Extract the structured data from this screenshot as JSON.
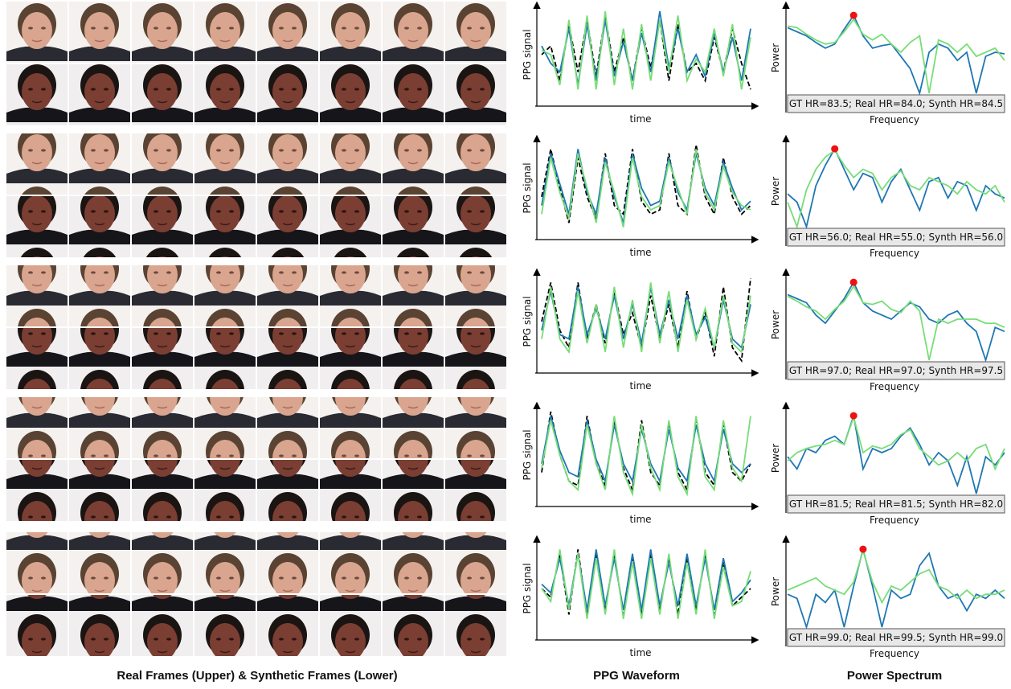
{
  "axes": {
    "ppg_y": "PPG signal",
    "ppg_x": "time",
    "spec_y": "Power",
    "spec_x": "Frequency"
  },
  "captions": [
    "Real Frames (Upper) & Synthetic Frames (Lower)",
    "PPG Waveform",
    "Power Spectrum"
  ],
  "colors": {
    "gt": "#000000",
    "real": "#1f77b4",
    "synth": "#77dd77",
    "peak": "#ee1111"
  },
  "rows": [
    {
      "ppg": {
        "gt": [
          0.5,
          0.6,
          0.2,
          0.85,
          0.3,
          0.9,
          0.25,
          0.95,
          0.3,
          0.7,
          0.2,
          0.8,
          0.35,
          0.9,
          0.2,
          0.85,
          0.3,
          0.4,
          0.2,
          0.7,
          0.3,
          0.8,
          0.4,
          0.1
        ],
        "real": [
          0.6,
          0.4,
          0.3,
          0.8,
          0.15,
          0.85,
          0.2,
          0.9,
          0.25,
          0.65,
          0.2,
          0.75,
          0.3,
          1.0,
          0.35,
          0.8,
          0.3,
          0.5,
          0.25,
          0.75,
          0.3,
          0.7,
          0.2,
          0.8
        ],
        "synth": [
          0.55,
          0.5,
          0.15,
          0.9,
          0.1,
          0.95,
          0.1,
          1.0,
          0.15,
          0.8,
          0.1,
          0.85,
          0.2,
          0.9,
          0.3,
          0.95,
          0.2,
          0.45,
          0.3,
          0.8,
          0.25,
          0.85,
          0.1,
          0.7
        ]
      },
      "spectrum": {
        "label": "GT HR=83.5; Real HR=84.0; Synth HR=84.5",
        "real": [
          0.8,
          0.75,
          0.7,
          0.62,
          0.55,
          0.6,
          0.78,
          0.95,
          0.7,
          0.55,
          0.58,
          0.6,
          0.45,
          0.3,
          0.0,
          0.5,
          0.6,
          0.55,
          0.4,
          0.5,
          0.0,
          0.45,
          0.5,
          0.48
        ],
        "synth": [
          0.82,
          0.8,
          0.72,
          0.65,
          0.6,
          0.62,
          0.75,
          0.9,
          0.72,
          0.65,
          0.72,
          0.6,
          0.5,
          0.62,
          0.7,
          0.0,
          0.65,
          0.6,
          0.5,
          0.6,
          0.45,
          0.5,
          0.55,
          0.4
        ]
      }
    },
    {
      "ppg": {
        "gt": [
          0.4,
          0.95,
          0.5,
          0.1,
          0.85,
          0.4,
          0.15,
          0.9,
          0.3,
          0.2,
          0.95,
          0.35,
          0.2,
          0.25,
          0.9,
          0.3,
          0.2,
          1.0,
          0.4,
          0.2,
          0.85,
          0.4,
          0.2,
          0.3
        ],
        "real": [
          0.3,
          0.9,
          0.55,
          0.2,
          0.95,
          0.45,
          0.2,
          0.85,
          0.4,
          0.1,
          0.9,
          0.5,
          0.3,
          0.35,
          0.85,
          0.45,
          0.25,
          0.9,
          0.5,
          0.3,
          0.8,
          0.5,
          0.25,
          0.35
        ],
        "synth": [
          0.2,
          0.85,
          0.45,
          0.15,
          0.9,
          0.5,
          0.1,
          0.8,
          0.45,
          0.05,
          0.85,
          0.4,
          0.25,
          0.3,
          0.8,
          0.5,
          0.2,
          0.95,
          0.45,
          0.25,
          0.75,
          0.45,
          0.3,
          0.25
        ]
      },
      "spectrum": {
        "label": "GT HR=56.0; Real HR=55.0; Synth HR=56.0",
        "real": [
          0.4,
          0.3,
          0.0,
          0.5,
          0.75,
          0.95,
          0.7,
          0.45,
          0.65,
          0.6,
          0.3,
          0.55,
          0.7,
          0.45,
          0.2,
          0.55,
          0.6,
          0.35,
          0.55,
          0.5,
          0.2,
          0.5,
          0.4,
          0.35
        ],
        "synth": [
          0.3,
          0.0,
          0.45,
          0.7,
          0.85,
          0.93,
          0.75,
          0.6,
          0.7,
          0.65,
          0.45,
          0.6,
          0.68,
          0.5,
          0.45,
          0.6,
          0.55,
          0.5,
          0.4,
          0.55,
          0.45,
          0.4,
          0.5,
          0.3
        ]
      }
    },
    {
      "ppg": {
        "gt": [
          0.5,
          0.95,
          0.4,
          0.2,
          0.95,
          0.3,
          0.7,
          0.25,
          0.85,
          0.35,
          0.6,
          0.2,
          0.8,
          0.3,
          0.7,
          0.2,
          0.85,
          0.3,
          0.6,
          0.1,
          0.9,
          0.2,
          0.05,
          1.0
        ],
        "real": [
          0.4,
          0.85,
          0.35,
          0.3,
          0.9,
          0.35,
          0.65,
          0.3,
          0.8,
          0.3,
          0.7,
          0.25,
          0.9,
          0.35,
          0.75,
          0.3,
          0.8,
          0.35,
          0.55,
          0.2,
          0.75,
          0.3,
          0.2,
          0.7
        ],
        "synth": [
          0.3,
          0.9,
          0.3,
          0.15,
          0.85,
          0.25,
          0.7,
          0.15,
          0.9,
          0.2,
          0.75,
          0.15,
          0.95,
          0.25,
          0.85,
          0.15,
          0.75,
          0.3,
          0.65,
          0.2,
          0.8,
          0.25,
          0.15,
          0.8
        ]
      },
      "spectrum": {
        "label": "GT HR=97.0; Real HR=97.0; Synth HR=97.5",
        "real": [
          0.8,
          0.75,
          0.7,
          0.55,
          0.45,
          0.6,
          0.75,
          0.95,
          0.7,
          0.6,
          0.55,
          0.5,
          0.6,
          0.7,
          0.65,
          0.5,
          0.45,
          0.55,
          0.6,
          0.45,
          0.35,
          0.0,
          0.4,
          0.35
        ],
        "synth": [
          0.78,
          0.72,
          0.65,
          0.6,
          0.5,
          0.62,
          0.72,
          0.9,
          0.7,
          0.68,
          0.72,
          0.62,
          0.58,
          0.72,
          0.6,
          0.0,
          0.5,
          0.45,
          0.5,
          0.5,
          0.5,
          0.45,
          0.45,
          0.4
        ]
      }
    },
    {
      "ppg": {
        "gt": [
          0.3,
          1.0,
          0.5,
          0.2,
          0.15,
          0.95,
          0.4,
          0.15,
          0.9,
          0.35,
          0.1,
          0.9,
          0.3,
          0.15,
          0.85,
          0.3,
          0.1,
          0.9,
          0.3,
          0.15,
          0.85,
          0.3,
          0.2,
          0.4
        ],
        "real": [
          0.4,
          0.95,
          0.55,
          0.3,
          0.25,
          0.9,
          0.45,
          0.2,
          0.85,
          0.4,
          0.2,
          0.8,
          0.4,
          0.2,
          0.8,
          0.35,
          0.2,
          0.85,
          0.4,
          0.2,
          0.8,
          0.4,
          0.3,
          0.4
        ],
        "synth": [
          0.35,
          0.9,
          0.5,
          0.2,
          0.1,
          0.85,
          0.4,
          0.1,
          0.95,
          0.3,
          0.05,
          0.85,
          0.35,
          0.1,
          0.9,
          0.25,
          0.05,
          0.95,
          0.25,
          0.1,
          0.9,
          0.35,
          0.2,
          0.95
        ]
      },
      "spectrum": {
        "label": "GT HR=81.5; Real HR=81.5; Synth HR=82.0",
        "real": [
          0.45,
          0.3,
          0.55,
          0.5,
          0.65,
          0.7,
          0.6,
          0.95,
          0.3,
          0.55,
          0.5,
          0.55,
          0.7,
          0.8,
          0.6,
          0.35,
          0.5,
          0.4,
          0.1,
          0.45,
          0.0,
          0.45,
          0.35,
          0.5
        ],
        "synth": [
          0.4,
          0.5,
          0.55,
          0.58,
          0.6,
          0.65,
          0.6,
          0.93,
          0.5,
          0.58,
          0.55,
          0.6,
          0.72,
          0.78,
          0.55,
          0.45,
          0.35,
          0.4,
          0.5,
          0.4,
          0.55,
          0.6,
          0.3,
          0.55
        ]
      }
    },
    {
      "ppg": {
        "gt": [
          0.5,
          0.4,
          0.9,
          0.2,
          0.95,
          0.2,
          0.9,
          0.25,
          0.9,
          0.2,
          0.85,
          0.2,
          0.9,
          0.25,
          0.85,
          0.2,
          0.85,
          0.25,
          0.9,
          0.2,
          0.8,
          0.3,
          0.4,
          0.5
        ],
        "real": [
          0.55,
          0.45,
          0.85,
          0.3,
          0.9,
          0.25,
          0.95,
          0.3,
          0.85,
          0.25,
          0.9,
          0.25,
          0.95,
          0.3,
          0.8,
          0.3,
          0.9,
          0.3,
          0.85,
          0.25,
          0.85,
          0.35,
          0.45,
          0.6
        ],
        "synth": [
          0.5,
          0.35,
          0.95,
          0.25,
          0.9,
          0.15,
          0.85,
          0.2,
          0.95,
          0.15,
          0.8,
          0.15,
          0.85,
          0.2,
          0.9,
          0.15,
          0.8,
          0.2,
          0.95,
          0.15,
          0.75,
          0.3,
          0.35,
          0.7
        ]
      },
      "spectrum": {
        "label": "GT HR=99.0; Real HR=99.5; Synth HR=99.0",
        "real": [
          0.4,
          0.35,
          0.0,
          0.4,
          0.3,
          0.45,
          0.0,
          0.5,
          0.95,
          0.5,
          0.0,
          0.45,
          0.35,
          0.4,
          0.75,
          0.9,
          0.5,
          0.35,
          0.4,
          0.2,
          0.4,
          0.35,
          0.45,
          0.35
        ],
        "synth": [
          0.45,
          0.5,
          0.55,
          0.6,
          0.5,
          0.45,
          0.4,
          0.55,
          0.93,
          0.55,
          0.3,
          0.5,
          0.45,
          0.55,
          0.65,
          0.7,
          0.5,
          0.45,
          0.35,
          0.45,
          0.35,
          0.4,
          0.4,
          0.45
        ]
      }
    }
  ]
}
